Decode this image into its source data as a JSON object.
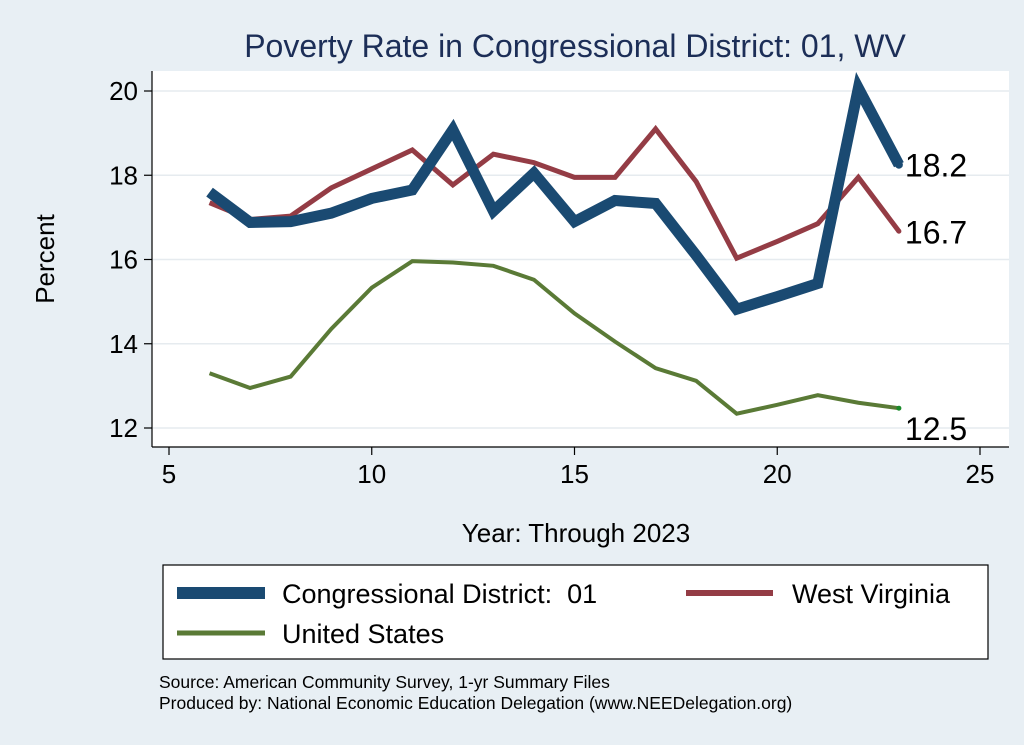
{
  "chart_data": {
    "type": "line",
    "title": "Poverty Rate in Congressional District:  01, WV",
    "xlabel": "Year: Through 2023",
    "ylabel": "Percent",
    "xlim": [
      5,
      25
    ],
    "ylim": [
      12,
      20
    ],
    "xticks": [
      5,
      10,
      15,
      20,
      25
    ],
    "yticks": [
      12,
      14,
      16,
      18,
      20
    ],
    "grid": true,
    "legend_position": "bottom",
    "series": [
      {
        "name": "Congressional District:  01",
        "color": "#1a4a72",
        "x": [
          6,
          7,
          8,
          9,
          10,
          11,
          12,
          13,
          14,
          15,
          16,
          17,
          18,
          19,
          20,
          21,
          22,
          23
        ],
        "values": [
          17.6,
          16.88,
          16.9,
          17.1,
          17.45,
          17.65,
          19.08,
          17.15,
          18.05,
          16.9,
          17.4,
          17.33,
          16.1,
          14.82,
          15.12,
          15.43,
          20.07,
          18.25
        ],
        "end_label": "18.2"
      },
      {
        "name": "West Virginia",
        "color": "#943c45",
        "x": [
          6,
          7,
          8,
          9,
          10,
          11,
          12,
          13,
          14,
          15,
          16,
          17,
          18,
          19,
          20,
          21,
          22,
          23
        ],
        "values": [
          17.35,
          16.95,
          17.03,
          17.7,
          18.15,
          18.6,
          17.77,
          18.5,
          18.3,
          17.95,
          17.95,
          19.1,
          17.85,
          16.03,
          16.43,
          16.85,
          17.95,
          16.67
        ],
        "end_label": "16.7"
      },
      {
        "name": "United States",
        "color": "#5a7a36",
        "x": [
          6,
          7,
          8,
          9,
          10,
          11,
          12,
          13,
          14,
          15,
          16,
          17,
          18,
          19,
          20,
          21,
          22,
          23
        ],
        "values": [
          13.3,
          12.95,
          13.22,
          14.35,
          15.33,
          15.96,
          15.93,
          15.85,
          15.52,
          14.72,
          14.05,
          13.42,
          13.12,
          12.34,
          12.55,
          12.78,
          12.6,
          12.47
        ],
        "end_label": "12.5"
      }
    ]
  },
  "source_note": "Source: American Community Survey, 1-yr Summary Files",
  "producer_note": "Produced by: National Economic Education Delegation (www.NEEDelegation.org)"
}
